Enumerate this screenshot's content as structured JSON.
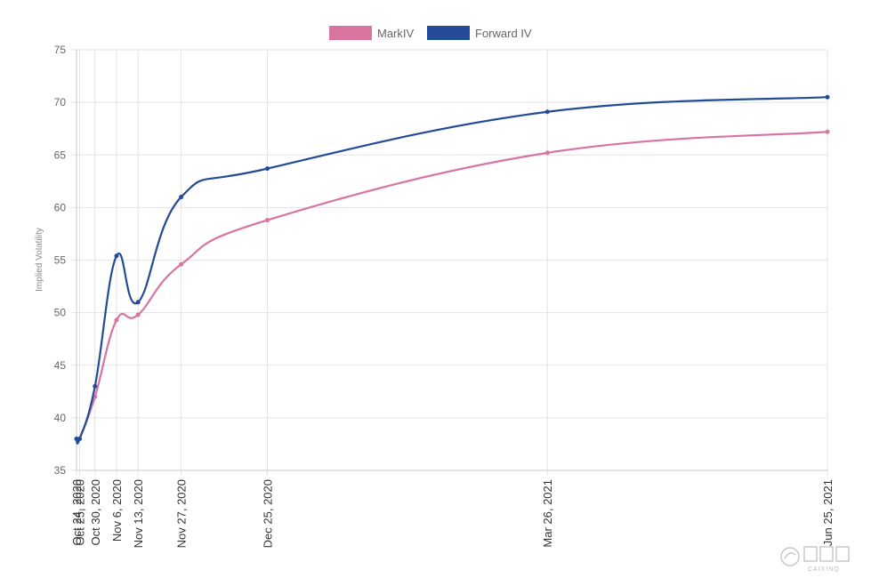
{
  "chart_data": {
    "type": "line",
    "title": "",
    "xlabel": "",
    "ylabel": "Implied Volatility",
    "ylim": [
      35,
      75
    ],
    "y_ticks": [
      35,
      40,
      45,
      50,
      55,
      60,
      65,
      70,
      75
    ],
    "grid": true,
    "legend_position": "top-center",
    "x": [
      {
        "label": "Oct 24, 2020",
        "day": 0
      },
      {
        "label": "Oct 25, 2020",
        "day": 1
      },
      {
        "label": "Oct 30, 2020",
        "day": 6
      },
      {
        "label": "Nov 6, 2020",
        "day": 13
      },
      {
        "label": "Nov 13, 2020",
        "day": 20
      },
      {
        "label": "Nov 27, 2020",
        "day": 34
      },
      {
        "label": "Dec 25, 2020",
        "day": 62
      },
      {
        "label": "Mar 26, 2021",
        "day": 153
      },
      {
        "label": "Jun 25, 2021",
        "day": 244
      }
    ],
    "series": [
      {
        "name": "MarkIV",
        "color": "#d9739f",
        "values": [
          38.0,
          38.0,
          42.0,
          49.3,
          49.8,
          54.6,
          58.8,
          65.2,
          67.2
        ]
      },
      {
        "name": "Forward IV",
        "color": "#234b96",
        "values": [
          38.0,
          38.0,
          43.0,
          55.4,
          51.0,
          61.0,
          63.7,
          69.1,
          70.5
        ]
      }
    ]
  },
  "watermark": {
    "text": "CAIXINQ"
  }
}
